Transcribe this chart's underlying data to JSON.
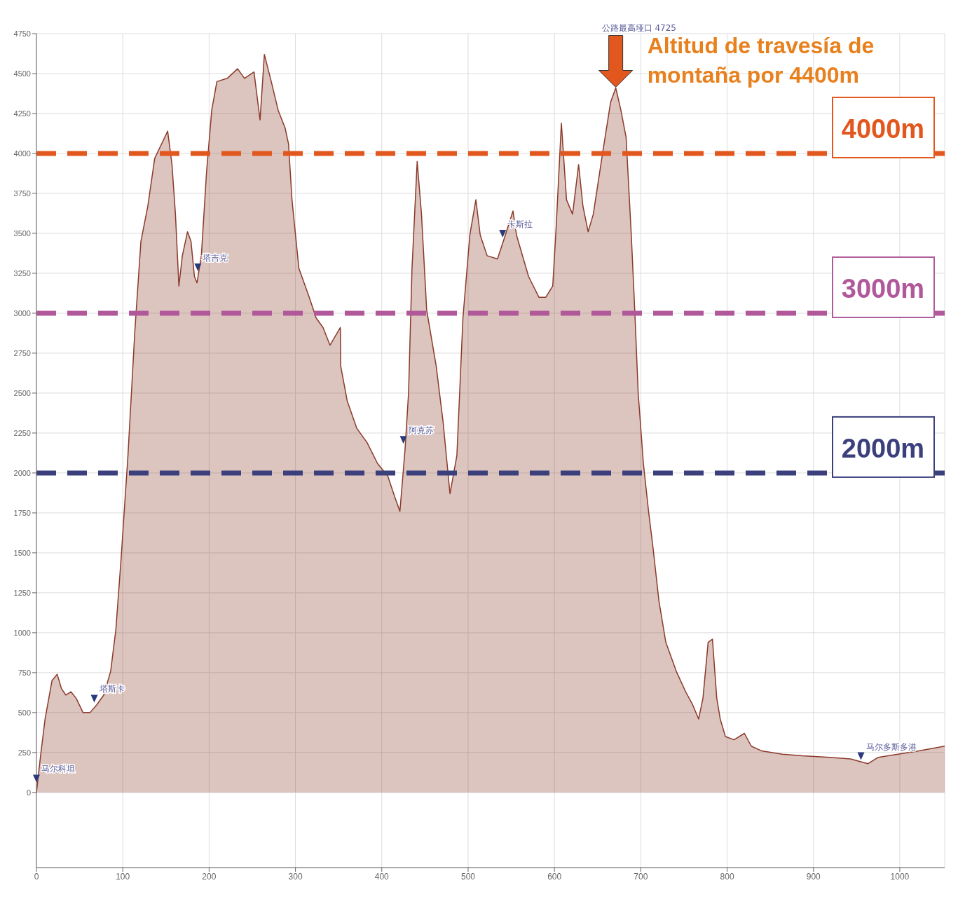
{
  "chart_data": {
    "type": "area",
    "x": [
      0,
      5,
      10,
      18,
      24,
      29,
      34,
      40,
      46,
      54,
      62,
      70,
      78,
      86,
      92,
      98,
      106,
      114,
      121,
      129,
      137,
      145,
      152,
      157,
      161,
      165,
      169,
      175,
      179,
      183,
      186,
      191,
      197,
      203,
      209,
      221,
      233,
      241,
      252,
      259,
      264,
      272,
      280,
      288,
      292,
      296,
      304,
      316,
      324,
      332,
      340,
      352,
      352.4,
      360,
      371,
      383,
      395,
      407,
      415,
      421,
      427,
      431,
      435,
      441,
      446,
      452,
      463,
      471,
      479,
      487,
      494,
      502,
      509,
      514,
      522,
      534,
      542,
      552,
      556,
      570,
      582,
      590,
      598,
      602,
      608,
      614,
      621,
      628,
      633,
      639,
      645,
      656,
      665,
      671,
      677,
      683,
      689,
      693,
      697,
      703,
      709,
      714,
      721,
      729,
      741,
      752,
      760,
      767,
      772,
      778,
      783,
      788,
      792,
      798,
      808,
      820,
      828,
      840,
      864,
      887,
      919,
      943,
      963,
      975,
      998,
      1022,
      1042,
      1052
    ],
    "series": [
      {
        "color": "#8b3a2a",
        "values": [
          0,
          240,
          460,
          700,
          740,
          650,
          610,
          630,
          590,
          500,
          500,
          550,
          610,
          760,
          1020,
          1460,
          2110,
          2890,
          3450,
          3670,
          3970,
          4060,
          4140,
          3930,
          3620,
          3170,
          3360,
          3510,
          3450,
          3230,
          3190,
          3360,
          3880,
          4270,
          4450,
          4470,
          4530,
          4470,
          4510,
          4210,
          4620,
          4450,
          4270,
          4160,
          4060,
          3710,
          3280,
          3100,
          2970,
          2910,
          2800,
          2910,
          2670,
          2450,
          2280,
          2190,
          2060,
          1980,
          1850,
          1760,
          2150,
          2500,
          3280,
          3950,
          3620,
          3020,
          2670,
          2320,
          1870,
          2110,
          2970,
          3490,
          3710,
          3490,
          3360,
          3340,
          3470,
          3640,
          3490,
          3230,
          3100,
          3100,
          3170,
          3540,
          4190,
          3710,
          3620,
          3930,
          3670,
          3510,
          3620,
          4010,
          4320,
          4410,
          4270,
          4100,
          3490,
          3020,
          2500,
          2060,
          1760,
          1540,
          1200,
          940,
          760,
          630,
          550,
          460,
          590,
          940,
          960,
          590,
          460,
          350,
          330,
          370,
          290,
          260,
          240,
          230,
          220,
          210,
          180,
          220,
          240,
          260,
          280,
          290
        ]
      }
    ],
    "xlim": [
      0,
      1052
    ],
    "xticks": [
      0,
      100,
      200,
      300,
      400,
      500,
      600,
      700,
      800,
      900,
      1000
    ],
    "ylim": [
      -470,
      4750
    ],
    "yticks": [
      0,
      250,
      500,
      750,
      1000,
      1250,
      1500,
      1750,
      2000,
      2250,
      2500,
      2750,
      3000,
      3250,
      3500,
      3750,
      4000,
      4250,
      4500,
      4750
    ],
    "grid": true,
    "legend": false,
    "marker": "none",
    "line_style": "solid",
    "ref_lines": [
      {
        "axis": "y",
        "value": 4000,
        "label": "4000m",
        "color": "#e2571e",
        "line_style": "dashed"
      },
      {
        "axis": "y",
        "value": 3000,
        "label": "3000m",
        "color": "#b0589a",
        "line_style": "dashed"
      },
      {
        "axis": "y",
        "value": 2000,
        "label": "2000m",
        "color": "#3b3f7c",
        "line_style": "dashed"
      }
    ],
    "annotations": [
      {
        "text": "Altitud de travesía de montaña por 4400m",
        "x": 671,
        "y": 4410
      },
      {
        "text": "马尔科坦",
        "x": 0,
        "y": 50
      },
      {
        "text": "塔斯卡",
        "x": 67,
        "y": 550
      },
      {
        "text": "塔吉克",
        "x": 187,
        "y": 3250
      },
      {
        "text": "阿克苏",
        "x": 425,
        "y": 2170
      },
      {
        "text": "卡斯拉",
        "x": 540,
        "y": 3460
      },
      "公路最高垭口 4725",
      {
        "text": "马尔多斯多港",
        "x": 955,
        "y": 190
      }
    ]
  }
}
